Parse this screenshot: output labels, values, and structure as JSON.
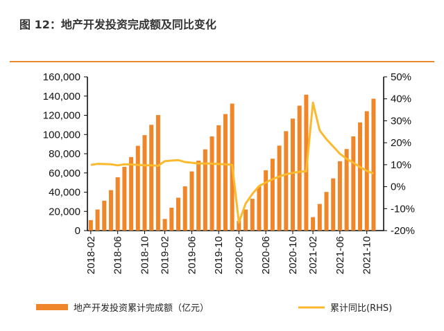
{
  "title": "图 12：地产开发投资完成额及同比变化",
  "chart_data": {
    "type": "bar+line",
    "title": "图 12：地产开发投资完成额及同比变化",
    "categories": [
      "2018-02",
      "2018-03",
      "2018-04",
      "2018-05",
      "2018-06",
      "2018-07",
      "2018-08",
      "2018-09",
      "2018-10",
      "2018-11",
      "2018-12",
      "2019-02",
      "2019-03",
      "2019-04",
      "2019-05",
      "2019-06",
      "2019-07",
      "2019-08",
      "2019-09",
      "2019-10",
      "2019-11",
      "2019-12",
      "2020-02",
      "2020-03",
      "2020-04",
      "2020-05",
      "2020-06",
      "2020-07",
      "2020-08",
      "2020-09",
      "2020-10",
      "2020-11",
      "2020-12",
      "2021-02",
      "2021-03",
      "2021-04",
      "2021-05",
      "2021-06",
      "2021-07",
      "2021-08",
      "2021-09",
      "2021-10",
      "2021-11"
    ],
    "tick_labels": [
      "2018-02",
      "2018-06",
      "2018-10",
      "2019-02",
      "2019-06",
      "2019-10",
      "2020-02",
      "2020-06",
      "2020-10",
      "2021-02",
      "2021-06",
      "2021-10"
    ],
    "series": [
      {
        "name": "地产开发投资累计完成额（亿元）",
        "type": "bar",
        "axis": "left",
        "color": "#F0862A",
        "values": [
          10927,
          21974,
          31120,
          42111,
          55531,
          66336,
          76519,
          88248,
          99326,
          110083,
          120264,
          12090,
          23803,
          34217,
          46075,
          61609,
          72843,
          84589,
          98008,
          109603,
          121265,
          132194,
          10115,
          21963,
          33103,
          45920,
          62780,
          74820,
          88454,
          103484,
          116556,
          130020,
          141443,
          13986,
          27765,
          40240,
          54318,
          72179,
          84895,
          98060,
          112558,
          124215,
          137253
        ]
      },
      {
        "name": "累计同比(RHS)",
        "type": "line",
        "axis": "right",
        "color": "#FBBA2E",
        "values": [
          9.9,
          10.4,
          10.3,
          10.2,
          9.7,
          10.2,
          10.1,
          9.9,
          9.7,
          9.7,
          9.5,
          11.6,
          11.9,
          12.1,
          11.2,
          10.9,
          10.6,
          10.5,
          10.5,
          10.3,
          10.2,
          9.9,
          -16.3,
          -7.7,
          -3.3,
          0.3,
          1.9,
          3.4,
          4.6,
          5.6,
          6.3,
          6.8,
          7.0,
          38.3,
          25.6,
          21.6,
          18.3,
          15.0,
          12.7,
          10.9,
          8.9,
          7.2,
          6.0
        ]
      }
    ],
    "y_left": {
      "range": [
        0,
        160000
      ],
      "ticks": [
        "0",
        "20,000",
        "40,000",
        "60,000",
        "80,000",
        "100,000",
        "120,000",
        "140,000",
        "160,000"
      ]
    },
    "y_right": {
      "range": [
        -20,
        50
      ],
      "ticks": [
        "-20%",
        "-10%",
        "0%",
        "10%",
        "20%",
        "30%",
        "40%",
        "50%"
      ]
    },
    "grid": false,
    "legend": "bottom"
  }
}
